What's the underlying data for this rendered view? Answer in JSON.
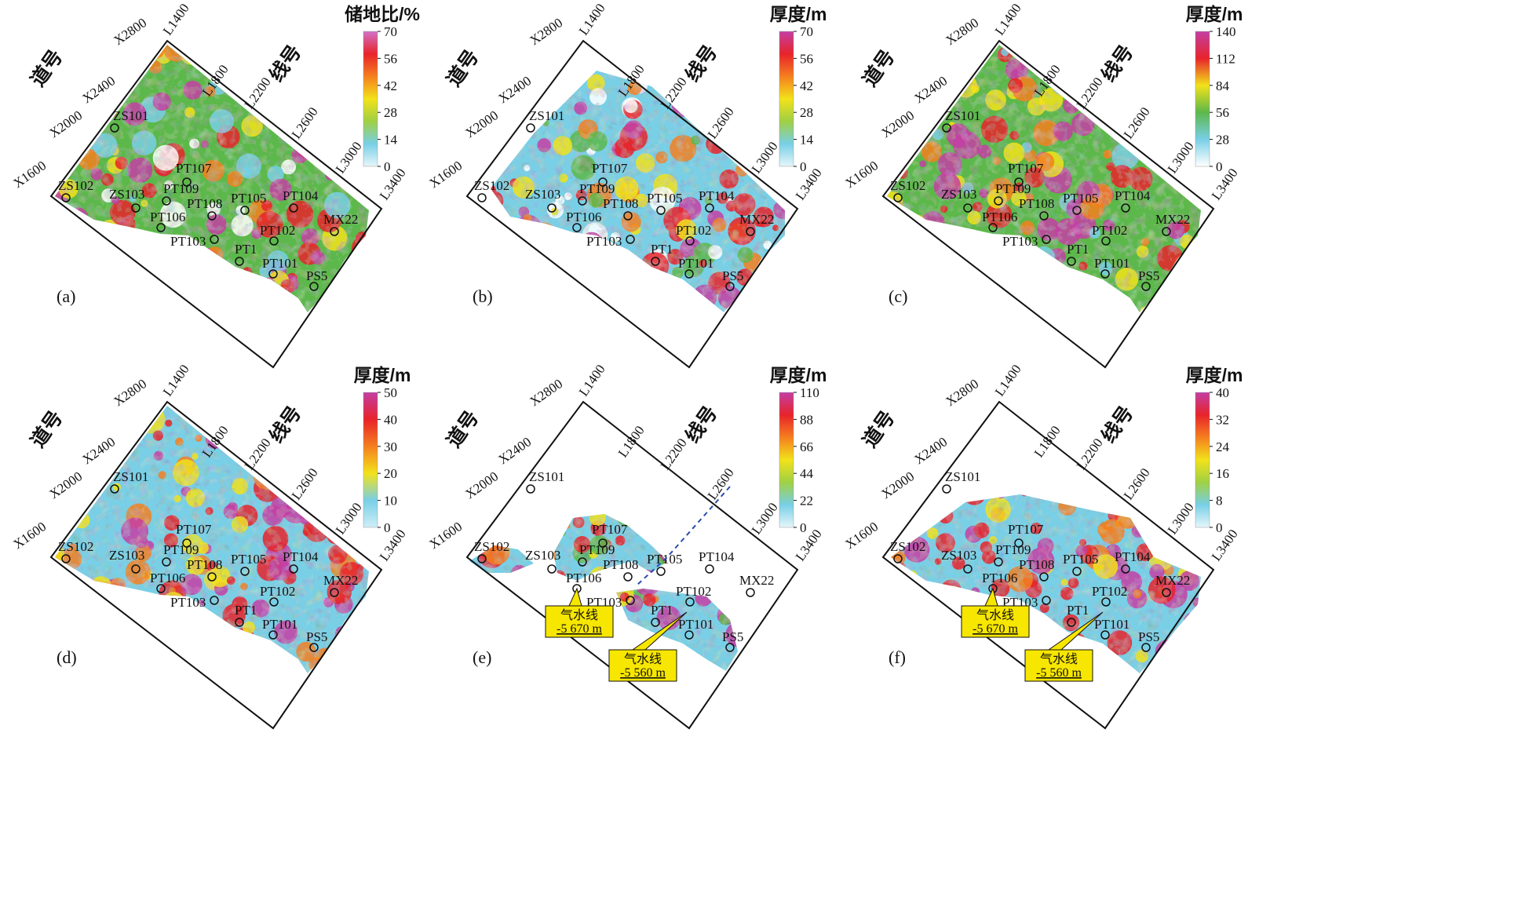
{
  "figure": {
    "panels": [
      {
        "letter": "(a)",
        "colorbar": {
          "title": "储地比/%",
          "ticks": [
            "70",
            "56",
            "42",
            "28",
            "14",
            "0"
          ],
          "palette": "a"
        },
        "wells": [
          "ZS101",
          "ZS102",
          "ZS103",
          "PT107",
          "PT109",
          "PT106",
          "PT108",
          "PT105",
          "PT104",
          "PT103",
          "PT102",
          "PT1",
          "PT101",
          "PS5",
          "MX22"
        ],
        "gas_water_contacts": []
      },
      {
        "letter": "(b)",
        "colorbar": {
          "title": "厚度/m",
          "ticks": [
            "70",
            "56",
            "42",
            "28",
            "14",
            "0"
          ],
          "palette": "b"
        },
        "wells": [
          "ZS101",
          "ZS102",
          "ZS103",
          "PT107",
          "PT109",
          "PT106",
          "PT108",
          "PT105",
          "PT104",
          "PT103",
          "PT102",
          "PT1",
          "PT101",
          "PS5",
          "MX22"
        ],
        "gas_water_contacts": []
      },
      {
        "letter": "(c)",
        "colorbar": {
          "title": "厚度/m",
          "ticks": [
            "140",
            "112",
            "84",
            "56",
            "28",
            "0"
          ],
          "palette": "c"
        },
        "wells": [
          "ZS101",
          "ZS102",
          "ZS103",
          "PT107",
          "PT109",
          "PT106",
          "PT108",
          "PT105",
          "PT104",
          "PT103",
          "PT102",
          "PT1",
          "PT101",
          "PS5",
          "MX22"
        ],
        "gas_water_contacts": []
      },
      {
        "letter": "(d)",
        "colorbar": {
          "title": "厚度/m",
          "ticks": [
            "50",
            "40",
            "30",
            "20",
            "10",
            "0"
          ],
          "palette": "d"
        },
        "wells": [
          "ZS101",
          "ZS102",
          "ZS103",
          "PT107",
          "PT109",
          "PT106",
          "PT108",
          "PT105",
          "PT104",
          "PT103",
          "PT102",
          "PT1",
          "PT101",
          "PS5",
          "MX22"
        ],
        "gas_water_contacts": []
      },
      {
        "letter": "(e)",
        "colorbar": {
          "title": "厚度/m",
          "ticks": [
            "110",
            "88",
            "66",
            "44",
            "22",
            "0"
          ],
          "palette": "e"
        },
        "wells": [
          "ZS101",
          "ZS102",
          "ZS103",
          "PT107",
          "PT109",
          "PT106",
          "PT108",
          "PT105",
          "PT104",
          "PT103",
          "PT102",
          "PT1",
          "PT101",
          "PS5",
          "MX22"
        ],
        "gas_water_contacts": [
          {
            "label": "气水线",
            "value": "-5 670 m"
          },
          {
            "label": "气水线",
            "value": "-5 560 m"
          }
        ]
      },
      {
        "letter": "(f)",
        "colorbar": {
          "title": "厚度/m",
          "ticks": [
            "40",
            "32",
            "24",
            "16",
            "8",
            "0"
          ],
          "palette": "f"
        },
        "wells": [
          "ZS101",
          "ZS102",
          "ZS103",
          "PT107",
          "PT109",
          "PT106",
          "PT108",
          "PT105",
          "PT104",
          "PT103",
          "PT102",
          "PT1",
          "PT101",
          "PS5",
          "MX22"
        ],
        "gas_water_contacts": [
          {
            "label": "气水线",
            "value": "-5 670 m"
          },
          {
            "label": "气水线",
            "value": "-5 560 m"
          }
        ]
      }
    ],
    "axes": {
      "trace_label": "道号",
      "line_label": "线号",
      "traces": [
        "X2800",
        "X2400",
        "X2000",
        "X1600"
      ],
      "lines": [
        "L1400",
        "L1800",
        "L2200",
        "L2600",
        "L3000",
        "L3400"
      ]
    },
    "colors": {
      "magenta": "#c43fa4",
      "red": "#e8232a",
      "orange": "#f57f1f",
      "yellow": "#f2e21a",
      "green": "#5cb84a",
      "cyan": "#78cfe6",
      "white": "#ffffff",
      "callout_fill": "#f7e600"
    }
  }
}
